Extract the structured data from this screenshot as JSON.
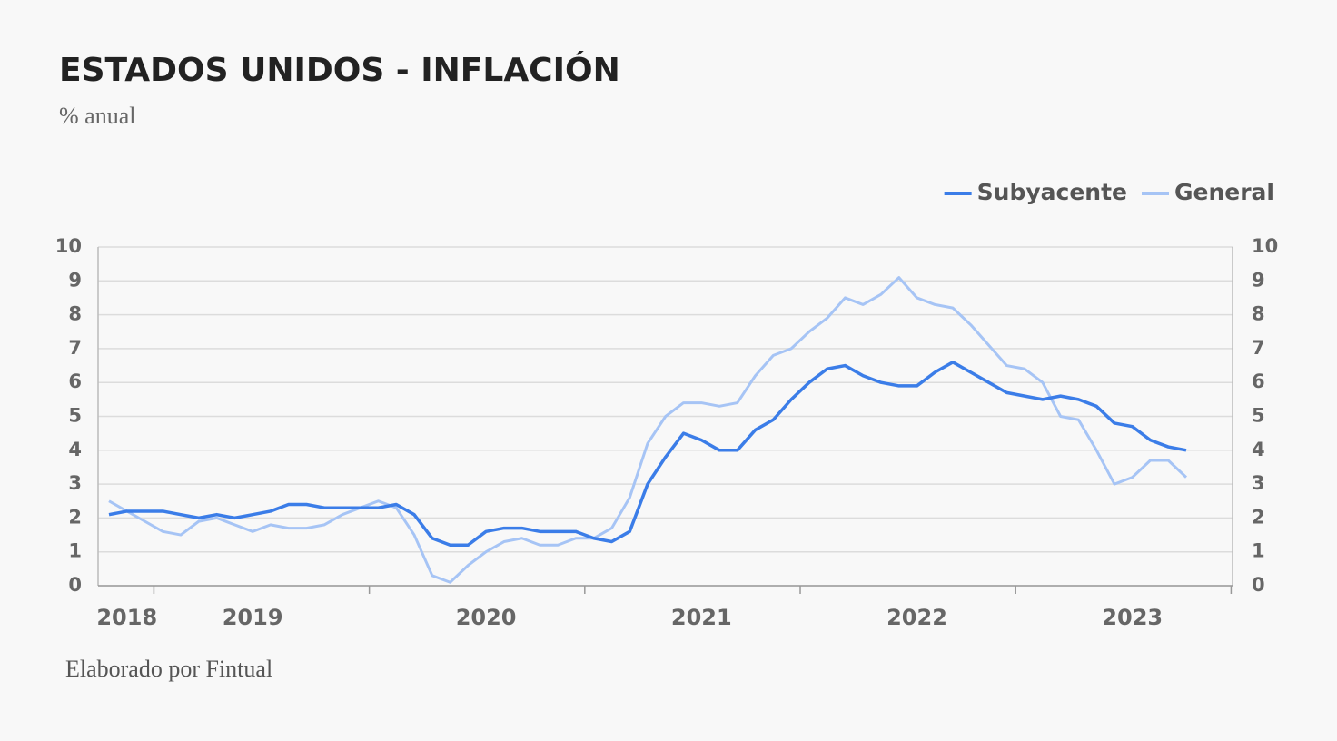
{
  "chart_data": {
    "type": "line",
    "title": "ESTADOS UNIDOS - INFLACIÓN",
    "subtitle": "% anual",
    "footer": "Elaborado por Fintual",
    "categories": [
      null,
      "2018",
      null,
      null,
      null,
      null,
      null,
      null,
      "2019",
      null,
      null,
      null,
      null,
      null,
      null,
      null,
      null,
      null,
      null,
      null,
      null,
      "2020",
      null,
      null,
      null,
      null,
      null,
      null,
      null,
      null,
      null,
      null,
      null,
      "2021",
      null,
      null,
      null,
      null,
      null,
      null,
      null,
      null,
      null,
      null,
      null,
      "2022",
      null,
      null,
      null,
      null,
      null,
      null,
      null,
      null,
      null,
      null,
      null,
      "2023",
      null,
      null,
      null
    ],
    "series": [
      {
        "name": "Subyacente",
        "color": "#3b7de8",
        "values": [
          2.1,
          2.2,
          2.2,
          2.2,
          2.1,
          2.0,
          2.1,
          2.0,
          2.1,
          2.2,
          2.4,
          2.4,
          2.3,
          2.3,
          2.3,
          2.3,
          2.4,
          2.1,
          1.4,
          1.2,
          1.2,
          1.6,
          1.7,
          1.7,
          1.6,
          1.6,
          1.6,
          1.4,
          1.3,
          1.6,
          3.0,
          3.8,
          4.5,
          4.3,
          4.0,
          4.0,
          4.6,
          4.9,
          5.5,
          6.0,
          6.4,
          6.5,
          6.2,
          6.0,
          5.9,
          5.9,
          6.3,
          6.6,
          6.3,
          6.0,
          5.7,
          5.6,
          5.5,
          5.6,
          5.5,
          5.3,
          4.8,
          4.7,
          4.3,
          4.1,
          4.0
        ]
      },
      {
        "name": "General",
        "color": "#a6c4f5",
        "values": [
          2.5,
          2.2,
          1.9,
          1.6,
          1.5,
          1.9,
          2.0,
          1.8,
          1.6,
          1.8,
          1.7,
          1.7,
          1.8,
          2.1,
          2.3,
          2.5,
          2.3,
          1.5,
          0.3,
          0.1,
          0.6,
          1.0,
          1.3,
          1.4,
          1.2,
          1.2,
          1.4,
          1.4,
          1.7,
          2.6,
          4.2,
          5.0,
          5.4,
          5.4,
          5.3,
          5.4,
          6.2,
          6.8,
          7.0,
          7.5,
          7.9,
          8.5,
          8.3,
          8.6,
          9.1,
          8.5,
          8.3,
          8.2,
          7.7,
          7.1,
          6.5,
          6.4,
          6.0,
          5.0,
          4.9,
          4.0,
          3.0,
          3.2,
          3.7,
          3.7,
          3.2
        ]
      }
    ],
    "ylim": [
      0,
      10
    ],
    "yticks": [
      0,
      1,
      2,
      3,
      4,
      5,
      6,
      7,
      8,
      9,
      10
    ],
    "grid": true,
    "legend": "top-right"
  }
}
